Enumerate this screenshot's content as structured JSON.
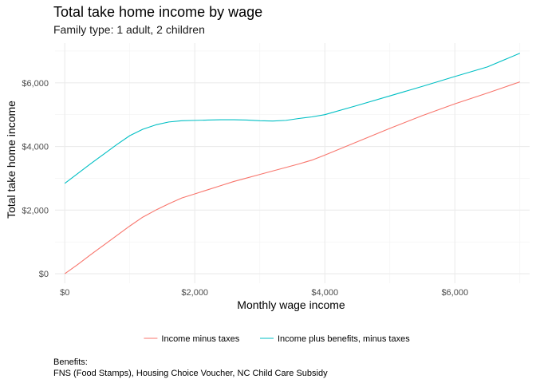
{
  "chart_data": {
    "type": "line",
    "title": "Total take home income by wage",
    "subtitle": "Family type: 1 adult, 2 children",
    "xlabel": "Monthly wage income",
    "ylabel": "Total take home income",
    "xlim": [
      -150,
      7150
    ],
    "ylim": [
      -300,
      7250
    ],
    "x_ticks": [
      0,
      2000,
      4000,
      6000
    ],
    "x_tick_labels": [
      "$0",
      "$2,000",
      "$4,000",
      "$6,000"
    ],
    "y_ticks": [
      0,
      2000,
      4000,
      6000
    ],
    "y_tick_labels": [
      "$0",
      "$2,000",
      "$4,000",
      "$6,000"
    ],
    "grid": true,
    "legend_position": "bottom",
    "series": [
      {
        "name": "Income minus taxes",
        "color": "#F8766D",
        "x": [
          0,
          200,
          400,
          600,
          800,
          1000,
          1200,
          1400,
          1600,
          1800,
          2000,
          2200,
          2400,
          2600,
          2800,
          3000,
          3200,
          3400,
          3600,
          3800,
          4000,
          4500,
          5000,
          5500,
          6000,
          6500,
          7000
        ],
        "y": [
          0,
          290,
          600,
          900,
          1200,
          1500,
          1780,
          2000,
          2200,
          2380,
          2510,
          2640,
          2770,
          2900,
          3010,
          3120,
          3230,
          3340,
          3450,
          3570,
          3730,
          4150,
          4570,
          4970,
          5340,
          5680,
          6030
        ]
      },
      {
        "name": "Income plus benefits, minus taxes",
        "color": "#00BFC4",
        "x": [
          0,
          200,
          400,
          600,
          800,
          1000,
          1200,
          1400,
          1600,
          1800,
          2000,
          2200,
          2400,
          2600,
          2800,
          3000,
          3200,
          3400,
          3600,
          3800,
          4000,
          4500,
          5000,
          5500,
          6000,
          6500,
          7000
        ],
        "y": [
          2840,
          3150,
          3460,
          3760,
          4060,
          4340,
          4540,
          4680,
          4770,
          4810,
          4820,
          4830,
          4840,
          4840,
          4830,
          4810,
          4800,
          4820,
          4880,
          4930,
          5000,
          5290,
          5590,
          5890,
          6200,
          6500,
          6930
        ]
      }
    ]
  },
  "caption_lines": [
    "Benefits:",
    "FNS (Food Stamps), Housing Choice Voucher, NC Child Care Subsidy"
  ]
}
